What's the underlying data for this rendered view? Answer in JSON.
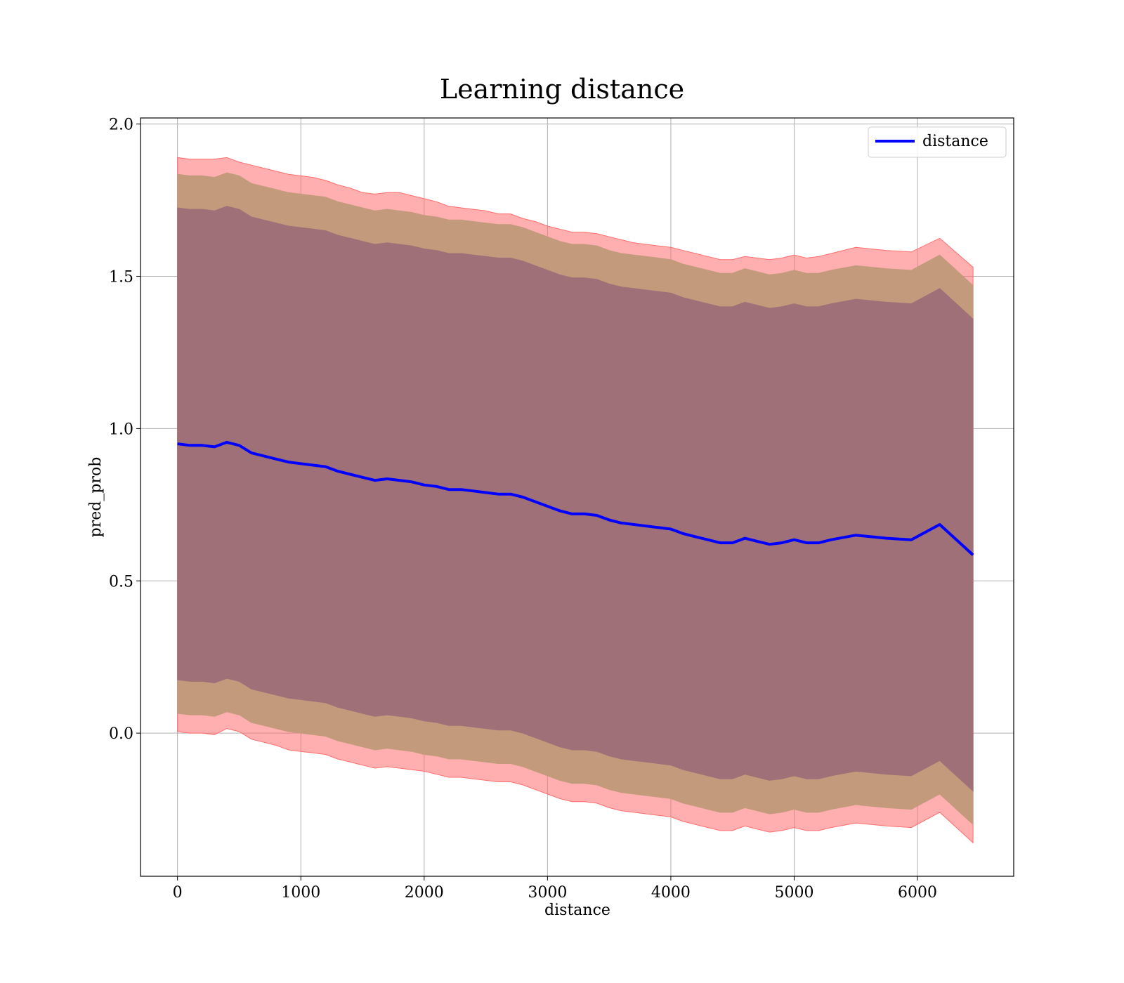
{
  "chart_data": {
    "type": "line",
    "title": "Learning distance",
    "xlabel": "distance",
    "ylabel": "pred_prob",
    "xlim": [
      -300,
      6780
    ],
    "ylim": [
      -0.47,
      2.02
    ],
    "xticks": [
      0,
      1000,
      2000,
      3000,
      4000,
      5000,
      6000
    ],
    "xtick_labels": [
      "0",
      "1000",
      "2000",
      "3000",
      "4000",
      "5000",
      "6000"
    ],
    "yticks": [
      0.0,
      0.5,
      1.0,
      1.5,
      2.0
    ],
    "ytick_labels": [
      "0.0",
      "0.5",
      "1.0",
      "1.5",
      "2.0"
    ],
    "grid": true,
    "legend": {
      "position": "top-right",
      "entries": [
        "distance"
      ]
    },
    "colors": {
      "line": "#0000ff",
      "band_outer": "#ff6e6e",
      "band_middle": "#c49a7c",
      "band_inner": "#a07078"
    },
    "series": [
      {
        "name": "distance",
        "x": [
          0,
          100,
          200,
          300,
          400,
          500,
          600,
          700,
          800,
          900,
          1000,
          1100,
          1200,
          1300,
          1400,
          1500,
          1600,
          1700,
          1800,
          1900,
          2000,
          2100,
          2200,
          2300,
          2400,
          2500,
          2600,
          2700,
          2800,
          2900,
          3000,
          3100,
          3200,
          3300,
          3400,
          3500,
          3600,
          3700,
          3800,
          3900,
          4000,
          4100,
          4200,
          4300,
          4400,
          4500,
          4600,
          4700,
          4800,
          4900,
          5000,
          5100,
          5200,
          5300,
          5500,
          5750,
          5950,
          6180,
          6450
        ],
        "y": [
          0.95,
          0.945,
          0.945,
          0.94,
          0.955,
          0.945,
          0.92,
          0.91,
          0.9,
          0.89,
          0.885,
          0.88,
          0.875,
          0.86,
          0.85,
          0.84,
          0.83,
          0.835,
          0.83,
          0.825,
          0.815,
          0.81,
          0.8,
          0.8,
          0.795,
          0.79,
          0.785,
          0.785,
          0.775,
          0.76,
          0.745,
          0.73,
          0.72,
          0.72,
          0.715,
          0.7,
          0.69,
          0.685,
          0.68,
          0.675,
          0.67,
          0.655,
          0.645,
          0.635,
          0.625,
          0.625,
          0.64,
          0.63,
          0.62,
          0.625,
          0.635,
          0.625,
          0.625,
          0.635,
          0.65,
          0.64,
          0.635,
          0.685,
          0.585
        ]
      }
    ],
    "bands": [
      {
        "name": "outer",
        "upper": [
          1.89,
          1.885,
          1.885,
          1.885,
          1.89,
          1.875,
          1.865,
          1.855,
          1.845,
          1.835,
          1.83,
          1.825,
          1.815,
          1.8,
          1.79,
          1.775,
          1.77,
          1.775,
          1.775,
          1.765,
          1.755,
          1.745,
          1.73,
          1.725,
          1.72,
          1.715,
          1.705,
          1.705,
          1.69,
          1.68,
          1.665,
          1.655,
          1.645,
          1.645,
          1.64,
          1.63,
          1.62,
          1.61,
          1.605,
          1.6,
          1.595,
          1.585,
          1.575,
          1.565,
          1.555,
          1.555,
          1.565,
          1.56,
          1.555,
          1.56,
          1.57,
          1.56,
          1.565,
          1.575,
          1.595,
          1.585,
          1.58,
          1.625,
          1.53
        ],
        "lower": [
          0.005,
          0.0,
          0.0,
          -0.005,
          0.015,
          0.005,
          -0.02,
          -0.03,
          -0.04,
          -0.055,
          -0.06,
          -0.065,
          -0.07,
          -0.085,
          -0.095,
          -0.105,
          -0.115,
          -0.11,
          -0.115,
          -0.12,
          -0.125,
          -0.135,
          -0.145,
          -0.145,
          -0.15,
          -0.155,
          -0.16,
          -0.16,
          -0.17,
          -0.185,
          -0.2,
          -0.215,
          -0.225,
          -0.225,
          -0.23,
          -0.245,
          -0.255,
          -0.26,
          -0.265,
          -0.27,
          -0.275,
          -0.29,
          -0.3,
          -0.31,
          -0.32,
          -0.32,
          -0.305,
          -0.315,
          -0.325,
          -0.32,
          -0.31,
          -0.32,
          -0.32,
          -0.31,
          -0.295,
          -0.305,
          -0.31,
          -0.26,
          -0.36
        ]
      },
      {
        "name": "middle",
        "upper": [
          1.835,
          1.83,
          1.83,
          1.825,
          1.84,
          1.83,
          1.805,
          1.795,
          1.785,
          1.775,
          1.77,
          1.765,
          1.76,
          1.745,
          1.735,
          1.725,
          1.715,
          1.72,
          1.715,
          1.71,
          1.7,
          1.695,
          1.685,
          1.685,
          1.68,
          1.675,
          1.67,
          1.67,
          1.66,
          1.645,
          1.63,
          1.615,
          1.605,
          1.605,
          1.6,
          1.585,
          1.575,
          1.57,
          1.565,
          1.56,
          1.555,
          1.54,
          1.53,
          1.52,
          1.51,
          1.51,
          1.525,
          1.515,
          1.505,
          1.51,
          1.52,
          1.51,
          1.51,
          1.52,
          1.535,
          1.525,
          1.52,
          1.57,
          1.47
        ],
        "lower": [
          0.065,
          0.06,
          0.06,
          0.055,
          0.07,
          0.06,
          0.035,
          0.025,
          0.015,
          0.005,
          0.0,
          -0.005,
          -0.01,
          -0.025,
          -0.035,
          -0.045,
          -0.055,
          -0.05,
          -0.055,
          -0.06,
          -0.07,
          -0.075,
          -0.085,
          -0.085,
          -0.09,
          -0.095,
          -0.1,
          -0.1,
          -0.11,
          -0.125,
          -0.14,
          -0.155,
          -0.165,
          -0.165,
          -0.17,
          -0.185,
          -0.195,
          -0.2,
          -0.205,
          -0.21,
          -0.215,
          -0.23,
          -0.24,
          -0.25,
          -0.26,
          -0.26,
          -0.245,
          -0.255,
          -0.265,
          -0.26,
          -0.25,
          -0.26,
          -0.26,
          -0.25,
          -0.235,
          -0.245,
          -0.25,
          -0.2,
          -0.3
        ]
      },
      {
        "name": "inner",
        "upper": [
          1.725,
          1.72,
          1.72,
          1.715,
          1.73,
          1.72,
          1.695,
          1.685,
          1.675,
          1.665,
          1.66,
          1.655,
          1.65,
          1.635,
          1.625,
          1.615,
          1.605,
          1.61,
          1.605,
          1.6,
          1.59,
          1.585,
          1.575,
          1.575,
          1.57,
          1.565,
          1.56,
          1.56,
          1.55,
          1.535,
          1.52,
          1.505,
          1.495,
          1.495,
          1.49,
          1.475,
          1.465,
          1.46,
          1.455,
          1.45,
          1.445,
          1.43,
          1.42,
          1.41,
          1.4,
          1.4,
          1.415,
          1.405,
          1.395,
          1.4,
          1.41,
          1.4,
          1.4,
          1.41,
          1.425,
          1.415,
          1.41,
          1.46,
          1.36
        ],
        "lower": [
          0.175,
          0.17,
          0.17,
          0.165,
          0.18,
          0.17,
          0.145,
          0.135,
          0.125,
          0.115,
          0.11,
          0.105,
          0.1,
          0.085,
          0.075,
          0.065,
          0.055,
          0.06,
          0.055,
          0.05,
          0.04,
          0.035,
          0.025,
          0.025,
          0.02,
          0.015,
          0.01,
          0.01,
          0.0,
          -0.015,
          -0.03,
          -0.045,
          -0.055,
          -0.055,
          -0.06,
          -0.075,
          -0.085,
          -0.09,
          -0.095,
          -0.1,
          -0.105,
          -0.12,
          -0.13,
          -0.14,
          -0.15,
          -0.15,
          -0.135,
          -0.145,
          -0.155,
          -0.15,
          -0.14,
          -0.15,
          -0.15,
          -0.14,
          -0.125,
          -0.135,
          -0.14,
          -0.09,
          -0.19
        ]
      }
    ]
  }
}
